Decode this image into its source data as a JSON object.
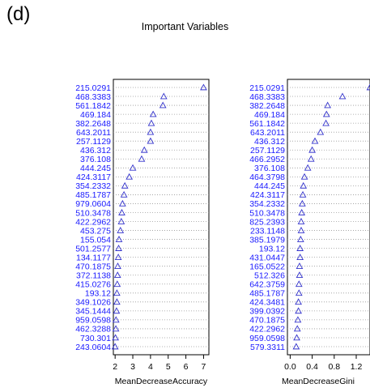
{
  "panel_label": "(d)",
  "title": "Important Variables",
  "colors": {
    "label": "#1a1aff",
    "marker": "#3333cc",
    "axis": "#000000",
    "dots": "#9a9a9a"
  },
  "chart_data": [
    {
      "type": "scatter",
      "xlabel": "MeanDecreaseAccuracy",
      "xlim": [
        1.9,
        7.3
      ],
      "xticks": [
        2,
        3,
        4,
        5,
        6,
        7
      ],
      "marker": "triangle",
      "categories": [
        "215.0291",
        "468.3383",
        "561.1842",
        "469.184",
        "382.2648",
        "643.2011",
        "257.1129",
        "436.312",
        "376.108",
        "444.245",
        "424.3117",
        "354.2332",
        "485.1787",
        "979.0604",
        "510.3478",
        "422.2962",
        "453.275",
        "155.054",
        "501.2577",
        "134.1177",
        "470.1875",
        "372.1138",
        "415.0276",
        "193.12",
        "349.1026",
        "345.1444",
        "959.0598",
        "462.3288",
        "730.301",
        "243.0604"
      ],
      "values": [
        7.0,
        4.75,
        4.7,
        4.15,
        4.05,
        4.0,
        4.0,
        3.65,
        3.5,
        3.0,
        2.8,
        2.55,
        2.5,
        2.42,
        2.38,
        2.35,
        2.3,
        2.22,
        2.2,
        2.18,
        2.15,
        2.14,
        2.12,
        2.1,
        2.1,
        2.08,
        2.05,
        2.04,
        2.02,
        2.0
      ]
    },
    {
      "type": "scatter",
      "xlabel": "MeanDecreaseGini",
      "xlim": [
        -0.05,
        1.45
      ],
      "xticks": [
        0.0,
        0.4,
        0.8,
        1.2
      ],
      "xtick_labels": [
        "0.0",
        "0.4",
        "0.8",
        "1.2"
      ],
      "marker": "triangle",
      "categories": [
        "215.0291",
        "468.3383",
        "382.2648",
        "469.184",
        "561.1842",
        "643.2011",
        "436.312",
        "257.1129",
        "466.2952",
        "376.108",
        "464.3798",
        "444.245",
        "424.3117",
        "354.2332",
        "510.3478",
        "825.2393",
        "233.1148",
        "385.1979",
        "193.12",
        "431.0447",
        "165.0522",
        "512.326",
        "642.3759",
        "485.1787",
        "424.3481",
        "399.0392",
        "470.1875",
        "422.2962",
        "959.0598",
        "579.3311"
      ],
      "values": [
        1.45,
        0.95,
        0.68,
        0.66,
        0.65,
        0.55,
        0.45,
        0.4,
        0.38,
        0.32,
        0.26,
        0.24,
        0.23,
        0.22,
        0.21,
        0.2,
        0.2,
        0.19,
        0.18,
        0.18,
        0.17,
        0.17,
        0.16,
        0.16,
        0.15,
        0.15,
        0.14,
        0.13,
        0.12,
        0.11
      ]
    }
  ]
}
